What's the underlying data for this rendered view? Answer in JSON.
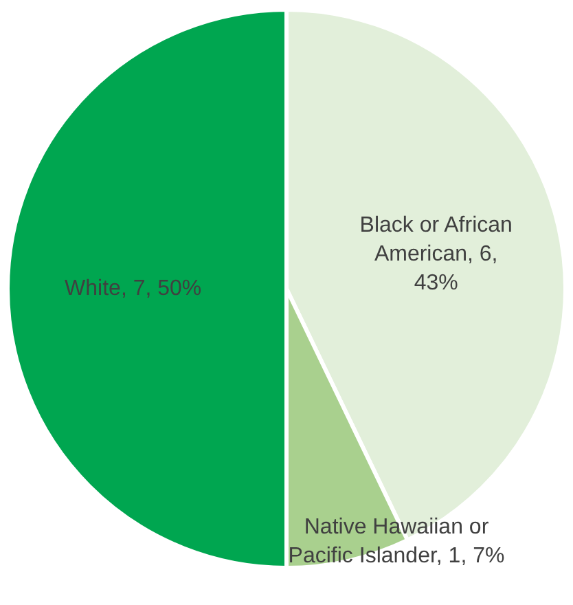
{
  "chart_data": {
    "type": "pie",
    "categories": [
      "Black or African American",
      "Native Hawaiian or Pacific Islander",
      "White"
    ],
    "values": [
      6,
      1,
      7
    ],
    "colors": [
      "#e2efda",
      "#a9d08e",
      "#00a650"
    ],
    "value_labels": [
      "6, 43%",
      "1, 7%",
      "7, 50%"
    ],
    "legend": false
  }
}
